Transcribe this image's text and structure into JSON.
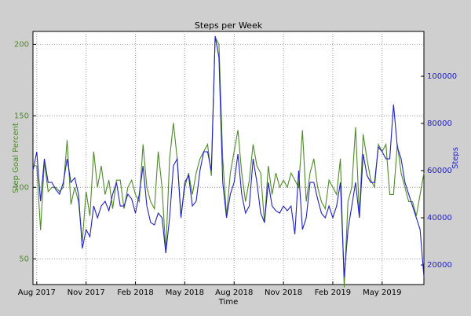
{
  "chart_data": {
    "type": "line",
    "title": "Steps per Week",
    "xlabel": "Time",
    "ylabel": "Step Goal Percent",
    "y2label": "Steps",
    "categories": [
      null,
      "Aug 2017",
      null,
      null,
      null,
      null,
      null,
      null,
      null,
      null,
      null,
      null,
      null,
      null,
      "Nov 2017",
      null,
      null,
      null,
      null,
      null,
      null,
      null,
      null,
      null,
      null,
      null,
      null,
      "Feb 2018",
      null,
      null,
      null,
      null,
      null,
      null,
      null,
      null,
      null,
      null,
      null,
      null,
      "May 2018",
      null,
      null,
      null,
      null,
      null,
      null,
      null,
      null,
      null,
      null,
      null,
      null,
      "Aug 2018",
      null,
      null,
      null,
      null,
      null,
      null,
      null,
      null,
      null,
      null,
      null,
      null,
      "Nov 2018",
      null,
      null,
      null,
      null,
      null,
      null,
      null,
      null,
      null,
      null,
      null,
      null,
      "Feb 2019",
      null,
      null,
      null,
      null,
      null,
      null,
      null,
      null,
      null,
      null,
      null,
      null,
      "May 2019",
      null,
      null,
      null,
      null,
      null,
      null,
      null,
      null,
      null,
      null,
      null
    ],
    "series": [
      {
        "color": "#4e8a28",
        "axis": "y",
        "values": [
          115,
          115,
          70,
          118,
          97,
          100,
          100,
          97,
          100,
          133,
          88,
          100,
          90,
          62,
          97,
          80,
          125,
          100,
          115,
          95,
          105,
          85,
          105,
          105,
          85,
          100,
          105,
          95,
          90,
          130,
          100,
          90,
          85,
          125,
          100,
          55,
          120,
          145,
          120,
          80,
          100,
          110,
          95,
          110,
          120,
          125,
          130,
          108,
          205,
          200,
          120,
          80,
          110,
          125,
          140,
          110,
          90,
          105,
          130,
          115,
          110,
          75,
          115,
          95,
          110,
          100,
          105,
          100,
          110,
          105,
          100,
          140,
          90,
          110,
          120,
          100,
          90,
          85,
          105,
          100,
          95,
          120,
          30,
          90,
          100,
          142,
          80,
          137,
          120,
          105,
          100,
          130,
          125,
          130,
          95,
          95,
          130,
          110,
          100,
          90,
          90,
          80,
          95,
          110
        ]
      },
      {
        "color": "#2020c8",
        "axis": "y2",
        "values": [
          60000,
          68000,
          47000,
          65000,
          55000,
          55000,
          52000,
          50000,
          55000,
          65000,
          55000,
          57000,
          50000,
          27000,
          35000,
          32000,
          45000,
          40000,
          45000,
          47000,
          43000,
          50000,
          55000,
          45000,
          45000,
          50000,
          48000,
          42000,
          50000,
          62000,
          45000,
          38000,
          37000,
          42000,
          40000,
          25000,
          40000,
          62000,
          65000,
          40000,
          55000,
          58000,
          45000,
          47000,
          60000,
          68000,
          68000,
          60000,
          117000,
          108000,
          55000,
          40000,
          50000,
          55000,
          67000,
          50000,
          42000,
          45000,
          65000,
          55000,
          42000,
          38000,
          55000,
          45000,
          43000,
          42000,
          45000,
          43000,
          45000,
          33000,
          60000,
          35000,
          40000,
          55000,
          55000,
          48000,
          42000,
          40000,
          45000,
          40000,
          45000,
          55000,
          15000,
          35000,
          45000,
          55000,
          40000,
          67000,
          58000,
          55000,
          55000,
          70000,
          68000,
          65000,
          65000,
          88000,
          70000,
          65000,
          55000,
          50000,
          45000,
          40000,
          35000,
          15000
        ]
      }
    ],
    "ylim": [
      32,
      209
    ],
    "yticks": [
      50,
      100,
      150,
      200
    ],
    "y2lim": [
      11700,
      119000
    ],
    "y2ticks": [
      20000,
      40000,
      60000,
      80000,
      100000
    ],
    "grid": true
  }
}
